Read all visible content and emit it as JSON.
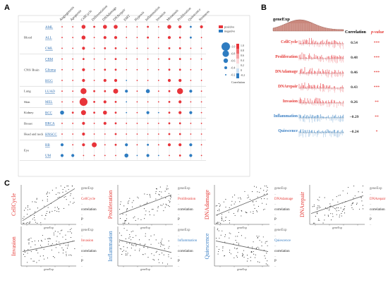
{
  "panels": {
    "a": "A",
    "b": "B",
    "c": "C"
  },
  "colors": {
    "positive": "#e8343a",
    "negative": "#2e7cc1",
    "link": "#2f6fb2",
    "grid": "#d9d9d9",
    "red_text": "#e53935",
    "blue_text": "#3a7fc4"
  },
  "chart_data": [
    {
      "type": "heatmap",
      "states": [
        "Angiogenesis",
        "Apoptosis",
        "CellCycle",
        "Differentiation",
        "DNAdamage",
        "DNArepair",
        "EMT",
        "Hypoxia",
        "Inflammation",
        "Invasion",
        "Metastasis",
        "Proliferation",
        "Quiescence",
        "Stemness"
      ],
      "groups": [
        {
          "name": "Blood",
          "cancers": [
            "AML",
            "ALL",
            "CML"
          ]
        },
        {
          "name": "CNS/ Brain",
          "cancers": [
            "CBM",
            "Glioma",
            "HGG"
          ]
        },
        {
          "name": "Lung",
          "cancers": [
            "LUAD"
          ]
        },
        {
          "name": "Skin",
          "cancers": [
            "MEL"
          ]
        },
        {
          "name": "Kidney",
          "cancers": [
            "BCC"
          ]
        },
        {
          "name": "Breast",
          "cancers": [
            "BRCA"
          ]
        },
        {
          "name": "Head and neck",
          "cancers": [
            "HNSCC"
          ]
        },
        {
          "name": "Eye",
          "cancers": [
            "RB",
            "UM"
          ]
        }
      ],
      "values": [
        [
          0.1,
          0.1,
          0.4,
          0.2,
          0.4,
          0.4,
          0.1,
          0.1,
          0.2,
          0.1,
          0.4,
          0.3,
          -0.2,
          0.3
        ],
        [
          0.1,
          0.1,
          0.4,
          0.1,
          0.3,
          0.3,
          0.1,
          0.1,
          0.2,
          0.1,
          0.3,
          0.2,
          -0.2,
          0.1
        ],
        [
          0.1,
          0.1,
          0.3,
          0.1,
          0.2,
          0.2,
          0.1,
          0.1,
          0.1,
          0.1,
          0.2,
          0.2,
          0.1,
          0.1
        ],
        [
          0.1,
          0.1,
          0.2,
          0.1,
          0.1,
          0.2,
          0.1,
          0.1,
          0.1,
          0.1,
          0.2,
          0.2,
          0.1,
          0.1
        ],
        [
          0.1,
          0.1,
          0.3,
          0.1,
          0.2,
          0.2,
          0.1,
          0.1,
          0.1,
          0.1,
          0.2,
          0.2,
          0.1,
          0.1
        ],
        [
          0.1,
          0.1,
          0.3,
          0.1,
          0.3,
          0.3,
          -0.1,
          0.1,
          0.1,
          0.1,
          0.3,
          0.3,
          0.1,
          0.1
        ],
        [
          0.1,
          0.1,
          0.6,
          0.2,
          0.2,
          0.5,
          -0.3,
          0.1,
          -0.4,
          0.1,
          0.2,
          0.6,
          -0.3,
          0.1
        ],
        [
          0.1,
          0.1,
          0.8,
          0.2,
          0.3,
          0.2,
          -0.1,
          0.1,
          0.1,
          0.1,
          0.2,
          0.3,
          0.1,
          0.1
        ],
        [
          -0.4,
          0.2,
          0.5,
          0.2,
          0.4,
          0.2,
          -0.1,
          0.1,
          -0.3,
          -0.1,
          0.2,
          0.3,
          -0.3,
          0.1
        ],
        [
          0.1,
          0.1,
          0.3,
          0.1,
          0.3,
          0.2,
          0.1,
          0.1,
          0.1,
          0.1,
          0.2,
          0.2,
          0.1,
          0.1
        ],
        [
          0.1,
          0.1,
          0.3,
          0.1,
          0.1,
          0.2,
          0.1,
          0.1,
          0.1,
          0.1,
          0.2,
          0.2,
          0.1,
          0.1
        ],
        [
          -0.3,
          0.1,
          0.3,
          0.5,
          0.1,
          0.2,
          -0.3,
          0.1,
          -0.2,
          0.1,
          0.3,
          0.3,
          -0.3,
          0.1
        ],
        [
          -0.3,
          -0.3,
          0.1,
          0.1,
          0.1,
          0.1,
          -0.4,
          -0.1,
          -0.3,
          -0.1,
          0.1,
          0.2,
          -0.3,
          0.1
        ]
      ],
      "legend": {
        "positive": "positive",
        "negative": "negative",
        "sizes": [
          "-1.0",
          "-0.8",
          "-0.6",
          "-0.4",
          "-0.2"
        ],
        "scale": [
          "1.0",
          "0.8",
          "0.6",
          "0.4",
          "0.2",
          "0",
          "-0.2"
        ],
        "title": "Correlation"
      }
    },
    {
      "type": "bar",
      "top_label": "geneExp",
      "correlation_header": "Correlation",
      "pvalue_header": "p-value",
      "series": [
        {
          "name": "CellCycle",
          "correlation": "0.54",
          "pvalue": "***",
          "sign": "positive"
        },
        {
          "name": "Proliferation",
          "correlation": "0.48",
          "pvalue": "***",
          "sign": "positive"
        },
        {
          "name": "DNAdamage",
          "correlation": "0.46",
          "pvalue": "***",
          "sign": "positive"
        },
        {
          "name": "DNArepair",
          "correlation": "0.43",
          "pvalue": "***",
          "sign": "positive"
        },
        {
          "name": "Invasion",
          "correlation": "0.26",
          "pvalue": "**",
          "sign": "positive"
        },
        {
          "name": "Inflammation",
          "correlation": "−0.29",
          "pvalue": "**",
          "sign": "negative"
        },
        {
          "name": "Quiescence",
          "correlation": "−0.24",
          "pvalue": "*",
          "sign": "negative"
        }
      ]
    },
    {
      "type": "scatter",
      "xlabel": "geneExp",
      "legend_items": [
        "geneExp",
        "–",
        "correlation",
        "P",
        "–"
      ],
      "plots": [
        {
          "state": "CellCycle",
          "sign": "positive",
          "slope": 0.9
        },
        {
          "state": "Proliferation",
          "sign": "positive",
          "slope": 0.55
        },
        {
          "state": "DNAdamage",
          "sign": "positive",
          "slope": 0.6
        },
        {
          "state": "DNArepair",
          "sign": "positive",
          "slope": 0.5
        },
        {
          "state": "Invasion",
          "sign": "positive",
          "slope": 0.3
        },
        {
          "state": "Inflammation",
          "sign": "negative",
          "slope": -0.35
        },
        {
          "state": "Quiescence",
          "sign": "negative",
          "slope": -0.3
        }
      ]
    }
  ]
}
